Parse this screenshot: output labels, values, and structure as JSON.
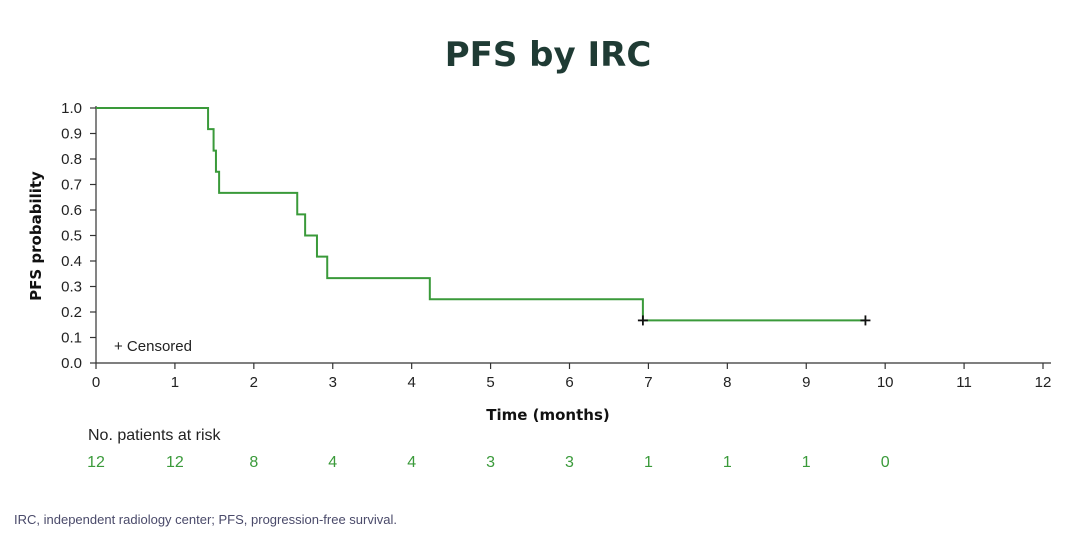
{
  "chart_data": {
    "type": "line",
    "title": "PFS by IRC",
    "xlabel": "Time (months)",
    "ylabel": "PFS probability",
    "xlim": [
      0,
      12
    ],
    "ylim": [
      0,
      1.0
    ],
    "x_ticks": [
      0,
      1,
      2,
      3,
      4,
      5,
      6,
      7,
      8,
      9,
      10,
      11,
      12
    ],
    "y_ticks": [
      "0.0",
      "0.1",
      "0.2",
      "0.3",
      "0.4",
      "0.5",
      "0.6",
      "0.7",
      "0.8",
      "0.9",
      "1.0"
    ],
    "grid": false,
    "series": [
      {
        "color": "#3a9a3a",
        "steps": [
          [
            0,
            1.0
          ],
          [
            1.42,
            0.917
          ],
          [
            1.49,
            0.833
          ],
          [
            1.52,
            0.75
          ],
          [
            1.56,
            0.667
          ],
          [
            2.55,
            0.583
          ],
          [
            2.65,
            0.5
          ],
          [
            2.8,
            0.417
          ],
          [
            2.93,
            0.333
          ],
          [
            4.23,
            0.25
          ],
          [
            6.93,
            0.167
          ]
        ],
        "end_x": 9.75,
        "censored": [
          [
            6.93,
            0.167
          ],
          [
            9.75,
            0.167
          ]
        ]
      }
    ],
    "legend": {
      "text": "+ Censored",
      "position": "bottom-left"
    },
    "risk_table": {
      "title": "No. patients at risk",
      "times": [
        0,
        1,
        2,
        3,
        4,
        5,
        6,
        7,
        8,
        9,
        10
      ],
      "values": [
        "12",
        "12",
        "8",
        "4",
        "4",
        "3",
        "3",
        "1",
        "1",
        "1",
        "0"
      ],
      "color": "#3a9a3a"
    }
  },
  "footnote": "IRC, independent radiology center; PFS, progression-free survival."
}
